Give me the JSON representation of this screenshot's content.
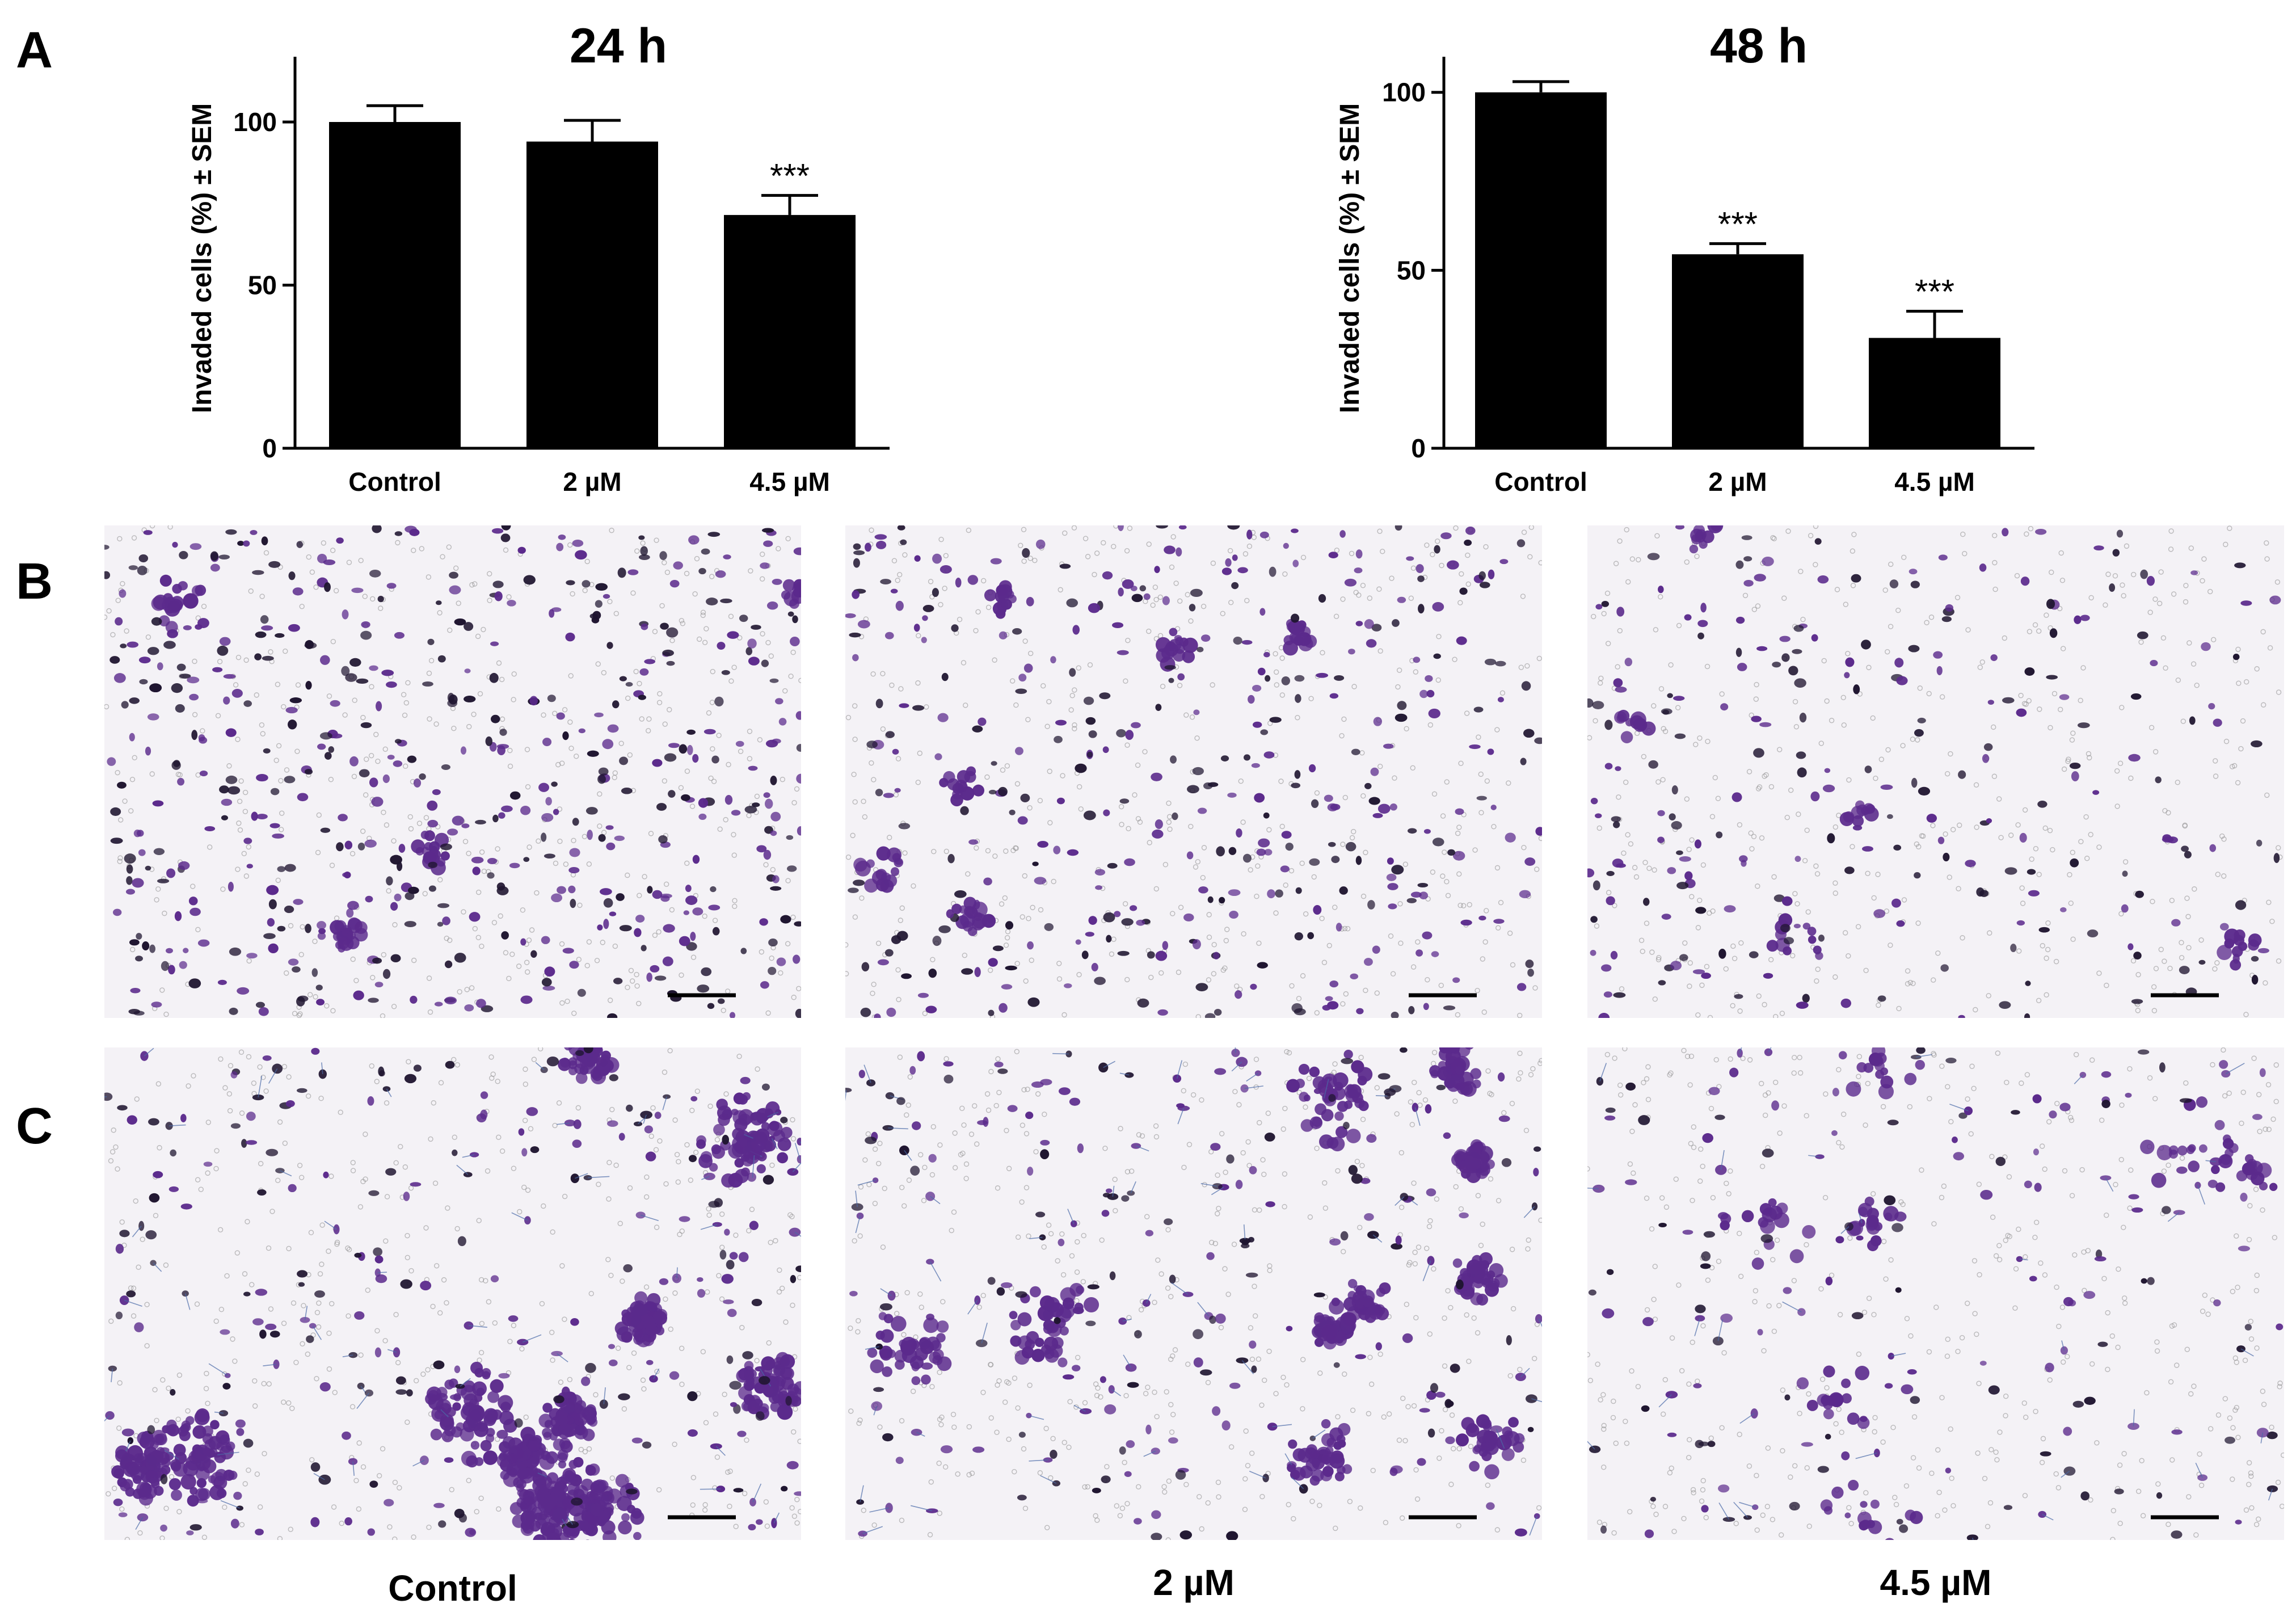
{
  "panels": {
    "a": "A",
    "b": "B",
    "c": "C"
  },
  "chart_data": [
    {
      "type": "bar",
      "title": "24 h",
      "ylabel": "Invaded cells (%) ± SEM",
      "xlabel": "",
      "categories": [
        "Control",
        "2 µM",
        "4.5 µM"
      ],
      "values": [
        100,
        94,
        71.5
      ],
      "errors": [
        5,
        6.5,
        6
      ],
      "annotations": [
        "",
        "",
        "***"
      ],
      "ylim": [
        0,
        120
      ],
      "yticks": [
        0,
        50,
        100
      ],
      "bar_color": "#000000",
      "grid": false,
      "legend": "none"
    },
    {
      "type": "bar",
      "title": "48 h",
      "ylabel": "Invaded cells (%) ± SEM",
      "xlabel": "",
      "categories": [
        "Control",
        "2 µM",
        "4.5 µM"
      ],
      "values": [
        100,
        54.5,
        31
      ],
      "errors": [
        3,
        3,
        7.5
      ],
      "annotations": [
        "",
        "***",
        "***"
      ],
      "ylim": [
        0,
        110
      ],
      "yticks": [
        0,
        50,
        100
      ],
      "bar_color": "#000000",
      "grid": false,
      "legend": "none"
    }
  ],
  "micrographs": {
    "stain_color": "#5b2a8c",
    "background_color": "#f4f2f6",
    "column_labels": [
      "Control",
      "2 µM",
      "4.5 µM"
    ]
  }
}
